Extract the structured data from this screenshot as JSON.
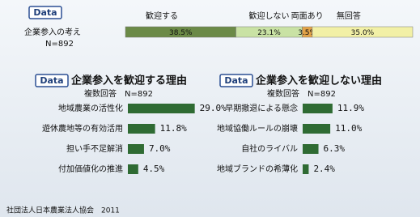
{
  "chart_data": [
    {
      "type": "stacked-bar",
      "badge": "Data",
      "title": "企業参入の考え",
      "subtitle": "N=892",
      "series": [
        {
          "name": "歓迎する",
          "color": "#6b8a47",
          "values": [
            38.5
          ],
          "value_labels": [
            "38.5%"
          ]
        },
        {
          "name": "歓迎しない",
          "color": "#c9e2a4",
          "values": [
            23.1
          ],
          "value_labels": [
            "23.1%"
          ]
        },
        {
          "name": "両面あり",
          "color": "#e3a347",
          "values": [
            3.5
          ],
          "value_labels": [
            "3.5%"
          ]
        },
        {
          "name": "無回答",
          "color": "#f2f0a6",
          "values": [
            35.0
          ],
          "value_labels": [
            "35.0%"
          ]
        }
      ]
    },
    {
      "type": "bar",
      "badge": "Data",
      "title": "企業参入を歓迎する理由",
      "subtitle": "複数回答　N=892",
      "categories": [
        "地域農業の活性化",
        "遊休農地等の有効活用",
        "担い手不足解消",
        "付加価値化の推進"
      ],
      "values": [
        29.0,
        11.8,
        7.0,
        4.5
      ],
      "value_labels": [
        "29.0%",
        "11.8%",
        "7.0%",
        "4.5%"
      ],
      "color": "#2f6b33"
    },
    {
      "type": "bar",
      "badge": "Data",
      "title": "企業参入を歓迎しない理由",
      "subtitle": "複数回答　N=892",
      "categories": [
        "早期撤退による懸念",
        "地域協働ルールの崩壊",
        "自社のライバル",
        "地域ブランドの希薄化"
      ],
      "values": [
        11.9,
        11.0,
        6.3,
        2.4
      ],
      "value_labels": [
        "11.9%",
        "11.0%",
        "6.3%",
        "2.4%"
      ],
      "color": "#2f6b33"
    }
  ],
  "footer": "社団法人日本農業法人協会　2011"
}
